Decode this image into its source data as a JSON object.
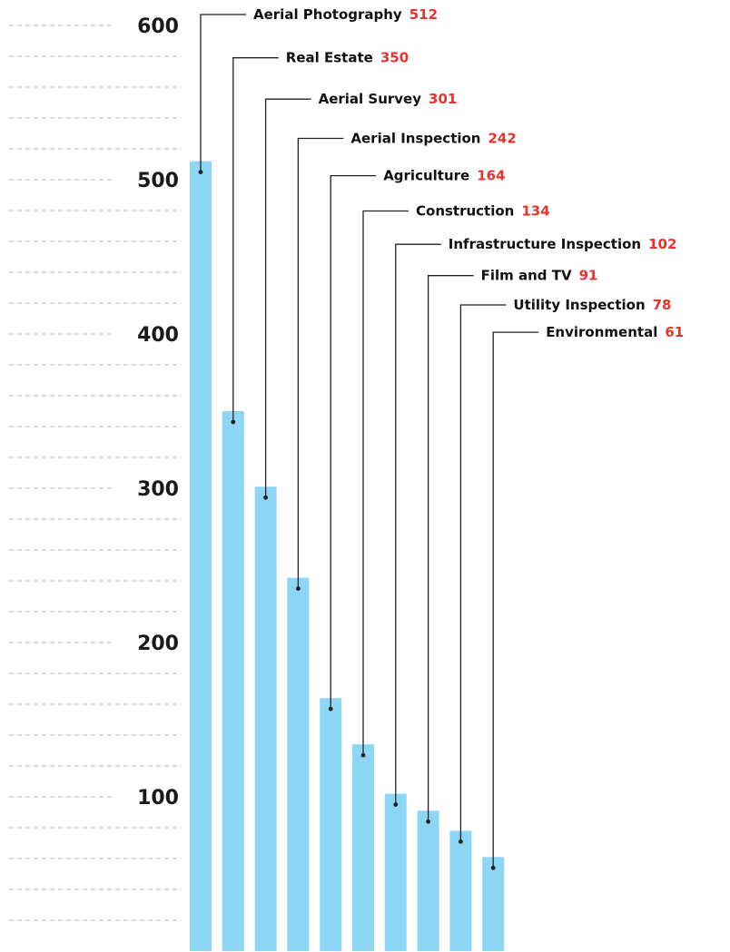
{
  "colors": {
    "bar": "#8ed6f5",
    "value_label": "#e8332c",
    "leader": "#222222",
    "grid": "#c8c8c8"
  },
  "chart_data": {
    "type": "bar",
    "orientation": "vertical",
    "categories": [
      "Aerial Photography",
      "Real Estate",
      "Aerial Survey",
      "Aerial Inspection",
      "Agriculture",
      "Construction",
      "Infrastructure Inspection",
      "Film and TV",
      "Utility Inspection",
      "Environmental"
    ],
    "values": [
      512,
      350,
      301,
      242,
      164,
      134,
      102,
      91,
      78,
      61
    ],
    "value_labels": [
      "512",
      "350",
      "301",
      "242",
      "164",
      "134",
      "102",
      "91",
      "78",
      "61"
    ],
    "ylim": [
      0,
      620
    ],
    "yticks": [
      100,
      200,
      300,
      400,
      500,
      600
    ],
    "ytick_labels": [
      "100",
      "200",
      "300",
      "400",
      "500",
      "600"
    ],
    "minor_grid_step": 20,
    "grid": true,
    "legend": "none",
    "title": "",
    "xlabel": "",
    "ylabel": ""
  }
}
